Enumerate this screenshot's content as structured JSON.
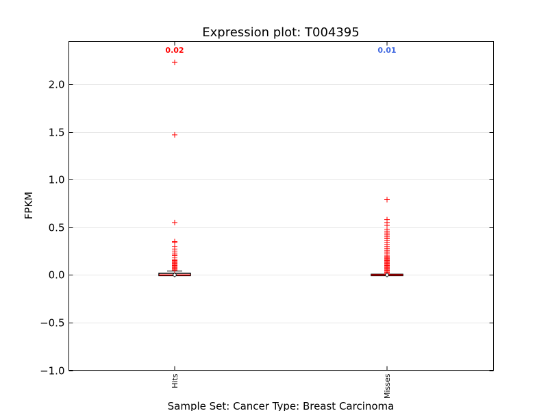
{
  "chart_data": {
    "type": "box",
    "title": "Expression plot: T004395",
    "xlabel": "Sample Set: Cancer Type: Breast Carcinoma",
    "ylabel": "FPKM",
    "ylim": [
      -1.0,
      2.45
    ],
    "yticks": [
      -1.0,
      -0.5,
      0.0,
      0.5,
      1.0,
      1.5,
      2.0
    ],
    "ytick_labels": [
      "−1.0",
      "−0.5",
      "0.0",
      "0.5",
      "1.0",
      "1.5",
      "2.0"
    ],
    "grid": "horizontal",
    "categories": [
      "Hits",
      "Misses"
    ],
    "series": [
      {
        "category": "Hits",
        "summary_label": "0.02",
        "summary_color": "#ff0000",
        "median": 0.0,
        "q1": 0.0,
        "q3": 0.01,
        "whisker_low": 0.0,
        "whisker_high": 0.04,
        "outliers": [
          2.23,
          1.47,
          0.55,
          0.35,
          0.34,
          0.3,
          0.27,
          0.25,
          0.23,
          0.21,
          0.2,
          0.18,
          0.16,
          0.15,
          0.14,
          0.13,
          0.12,
          0.11,
          0.1,
          0.09,
          0.08,
          0.07,
          0.06,
          0.05
        ]
      },
      {
        "category": "Misses",
        "summary_label": "0.01",
        "summary_color": "#4169e1",
        "median": 0.0,
        "q1": 0.0,
        "q3": 0.0,
        "whisker_low": 0.0,
        "whisker_high": 0.0,
        "outliers": [
          0.79,
          0.58,
          0.55,
          0.52,
          0.48,
          0.46,
          0.44,
          0.42,
          0.4,
          0.38,
          0.36,
          0.34,
          0.32,
          0.3,
          0.28,
          0.26,
          0.24,
          0.22,
          0.2,
          0.19,
          0.18,
          0.17,
          0.16,
          0.15,
          0.14,
          0.13,
          0.12,
          0.11,
          0.1,
          0.09,
          0.08,
          0.07,
          0.06,
          0.05,
          0.04,
          0.03,
          0.02,
          0.01
        ]
      }
    ],
    "colors": {
      "outlier": "#ff0000",
      "box": "#000000",
      "median": "#ff0000",
      "grid": "#e6e6e6"
    }
  }
}
